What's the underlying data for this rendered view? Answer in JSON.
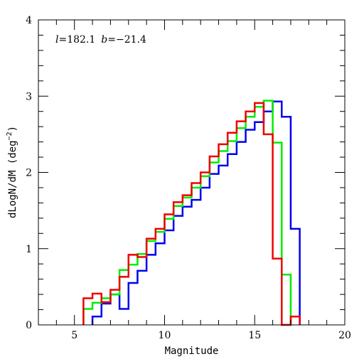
{
  "chart_data": {
    "type": "line",
    "step": true,
    "xlabel": "Magnitude",
    "ylabel": "dLogN/dM (deg",
    "ylabel_sup": "−2",
    "ylabel_close": ")",
    "annotation": {
      "l_sym": "l",
      "l_val": "=182.1",
      "b_sym": "b",
      "b_val": "=−21.4"
    },
    "xlim": [
      3,
      20
    ],
    "ylim": [
      0,
      4
    ],
    "xticks": [
      5,
      10,
      15,
      20
    ],
    "yticks": [
      0,
      1,
      2,
      3,
      4
    ],
    "xtick_labels": [
      "5",
      "10",
      "15",
      "20"
    ],
    "ytick_labels": [
      "0",
      "1",
      "2",
      "3",
      "4"
    ],
    "grid": false,
    "series": [
      {
        "color": "#0000ee",
        "edges": [
          6.0,
          6.5,
          7.0,
          7.5,
          8.0,
          8.5,
          9.0,
          9.5,
          10.0,
          10.5,
          11.0,
          11.5,
          12.0,
          12.5,
          13.0,
          13.5,
          14.0,
          14.5,
          15.0,
          15.5,
          16.0,
          16.5,
          17.0,
          17.5
        ],
        "values": [
          0.11,
          0.28,
          0.4,
          0.21,
          0.55,
          0.71,
          0.92,
          1.07,
          1.24,
          1.43,
          1.55,
          1.64,
          1.8,
          1.98,
          2.09,
          2.24,
          2.4,
          2.56,
          2.66,
          2.8,
          2.93,
          2.73,
          1.26
        ]
      },
      {
        "color": "#00ee00",
        "edges": [
          5.5,
          6.0,
          6.5,
          7.0,
          7.5,
          8.0,
          8.5,
          9.0,
          9.5,
          10.0,
          10.5,
          11.0,
          11.5,
          12.0,
          12.5,
          13.0,
          13.5,
          14.0,
          14.5,
          15.0,
          15.5,
          16.0,
          16.5,
          17.0
        ],
        "values": [
          0.21,
          0.29,
          0.35,
          0.4,
          0.72,
          0.79,
          0.93,
          1.1,
          1.22,
          1.39,
          1.56,
          1.67,
          1.8,
          1.95,
          2.13,
          2.28,
          2.41,
          2.58,
          2.73,
          2.86,
          2.94,
          2.39,
          0.66
        ]
      },
      {
        "color": "#ee0000",
        "edges": [
          5.5,
          6.0,
          6.5,
          7.0,
          7.5,
          8.0,
          8.5,
          9.0,
          9.5,
          10.0,
          10.5,
          11.0,
          11.5,
          12.0,
          12.5,
          13.0,
          13.5,
          14.0,
          14.5,
          15.0,
          15.5,
          16.0,
          16.5,
          17.0,
          17.5
        ],
        "values": [
          0.35,
          0.41,
          0.3,
          0.46,
          0.63,
          0.92,
          0.89,
          1.13,
          1.26,
          1.45,
          1.61,
          1.7,
          1.86,
          2.0,
          2.21,
          2.37,
          2.52,
          2.67,
          2.8,
          2.91,
          2.5,
          0.87,
          0.0,
          0.11
        ]
      }
    ]
  }
}
